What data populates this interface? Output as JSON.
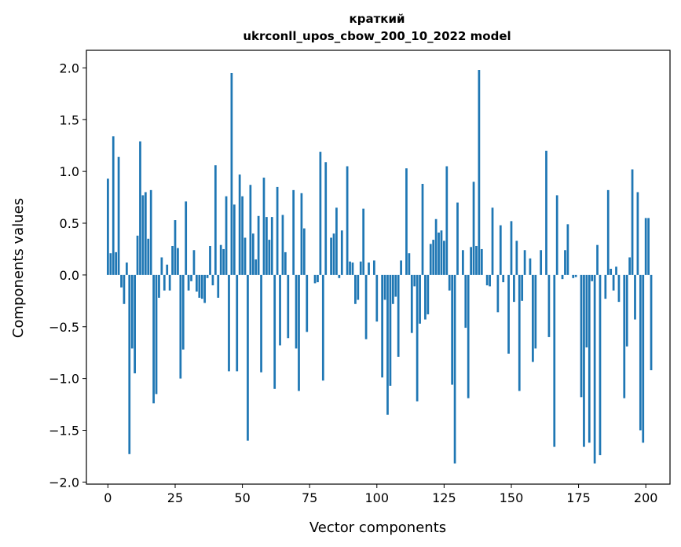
{
  "chart_data": {
    "type": "bar",
    "title_line1": "краткий",
    "title_line2": "ukrconll_upos_cbow_200_10_2022 model",
    "xlabel": "Vector components",
    "ylabel": "Components values",
    "xlim": [
      -8,
      209
    ],
    "ylim": [
      -2.02,
      2.17
    ],
    "xticks": [
      0,
      25,
      50,
      75,
      100,
      125,
      150,
      175,
      200
    ],
    "yticks": [
      -2.0,
      -1.5,
      -1.0,
      -0.5,
      0.0,
      0.5,
      1.0,
      1.5,
      2.0
    ],
    "xtick_labels": [
      "0",
      "25",
      "50",
      "75",
      "100",
      "125",
      "150",
      "175",
      "200"
    ],
    "ytick_labels": [
      "−2.0",
      "−1.5",
      "−1.0",
      "−0.5",
      "0.0",
      "0.5",
      "1.0",
      "1.5",
      "2.0"
    ],
    "bar_color": "#1f77b4",
    "values": [
      0.93,
      0.21,
      1.34,
      0.22,
      1.14,
      -0.12,
      -0.28,
      0.12,
      -1.73,
      -0.71,
      -0.95,
      0.38,
      1.29,
      0.77,
      0.8,
      0.35,
      0.82,
      -1.24,
      -1.15,
      -0.22,
      0.17,
      -0.15,
      0.1,
      -0.15,
      0.28,
      0.53,
      0.26,
      -1.0,
      -0.72,
      0.71,
      -0.15,
      -0.06,
      0.24,
      -0.16,
      -0.22,
      -0.23,
      -0.27,
      -0.03,
      0.28,
      -0.1,
      1.06,
      -0.22,
      0.29,
      0.25,
      0.76,
      -0.93,
      1.95,
      0.68,
      -0.93,
      0.97,
      0.76,
      0.36,
      -1.6,
      0.87,
      0.4,
      0.15,
      0.57,
      -0.94,
      0.94,
      0.56,
      0.34,
      0.56,
      -1.1,
      0.85,
      -0.68,
      0.58,
      0.22,
      -0.61,
      0.0,
      0.82,
      -0.71,
      -1.12,
      0.79,
      0.45,
      -0.55,
      0.0,
      0.0,
      -0.08,
      -0.07,
      1.19,
      -1.02,
      1.09,
      0.0,
      0.36,
      0.4,
      0.65,
      -0.03,
      0.43,
      0.0,
      1.05,
      0.13,
      0.12,
      -0.28,
      -0.24,
      0.13,
      0.64,
      -0.62,
      0.12,
      0.0,
      0.14,
      -0.45,
      0.0,
      -0.99,
      -0.24,
      -1.35,
      -1.07,
      -0.28,
      -0.21,
      -0.79,
      0.14,
      0.0,
      1.03,
      0.21,
      -0.56,
      -0.11,
      -1.22,
      -0.47,
      0.88,
      -0.43,
      -0.38,
      0.3,
      0.34,
      0.54,
      0.41,
      0.43,
      0.33,
      1.05,
      -0.15,
      -1.06,
      -1.82,
      0.7,
      0.0,
      0.24,
      -0.51,
      -1.19,
      0.27,
      0.9,
      0.28,
      1.98,
      0.25,
      0.0,
      -0.1,
      -0.11,
      0.65,
      0.0,
      -0.36,
      0.48,
      -0.07,
      0.0,
      -0.76,
      0.52,
      -0.26,
      0.33,
      -1.12,
      -0.25,
      0.24,
      0.0,
      0.16,
      -0.84,
      -0.71,
      0.0,
      0.24,
      0.0,
      1.2,
      -0.6,
      0.0,
      -1.66,
      0.77,
      0.0,
      -0.04,
      0.24,
      0.49,
      0.0,
      -0.03,
      -0.02,
      0.0,
      -1.18,
      -1.66,
      -0.7,
      -1.62,
      -0.06,
      -1.82,
      0.29,
      -1.74,
      0.0,
      -0.23,
      0.82,
      0.06,
      -0.15,
      0.08,
      -0.26,
      0.0,
      -1.19,
      -0.69,
      0.17,
      1.02,
      -0.43,
      0.8,
      -1.5,
      -1.62,
      0.55,
      0.55,
      -0.92
    ]
  }
}
